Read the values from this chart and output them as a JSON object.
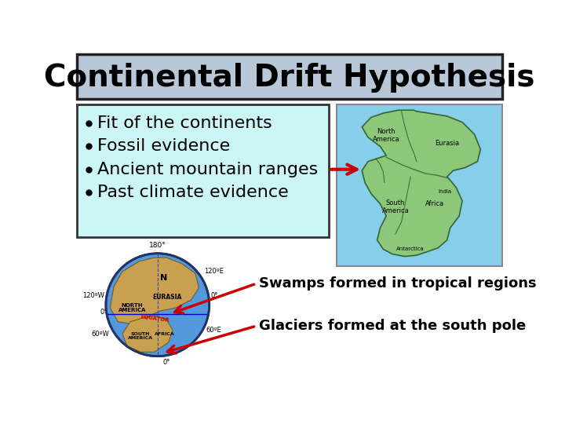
{
  "title": "Continental Drift Hypothesis",
  "title_bg": "#b8c8d8",
  "title_border": "#222222",
  "title_fontsize": 28,
  "bullet_box_bg": "#ccf5f5",
  "bullet_box_border": "#333333",
  "bullet_items": [
    "Fit of the continents",
    "Fossil evidence",
    "Ancient mountain ranges",
    "Past climate evidence"
  ],
  "bullet_fontsize": 16,
  "pangaea_box_bg": "#87ceeb",
  "pangaea_map_color": "#8dc87a",
  "pangaea_outline_color": "#336633",
  "arrow_color": "#cc0000",
  "swamps_text": "Swamps formed in tropical regions",
  "glaciers_text": "Glaciers formed at the south pole",
  "annotation_fontsize": 13,
  "bg_color": "#ffffff",
  "globe_ocean": "#5599dd",
  "globe_land": "#c8a050",
  "globe_border": "#223366"
}
